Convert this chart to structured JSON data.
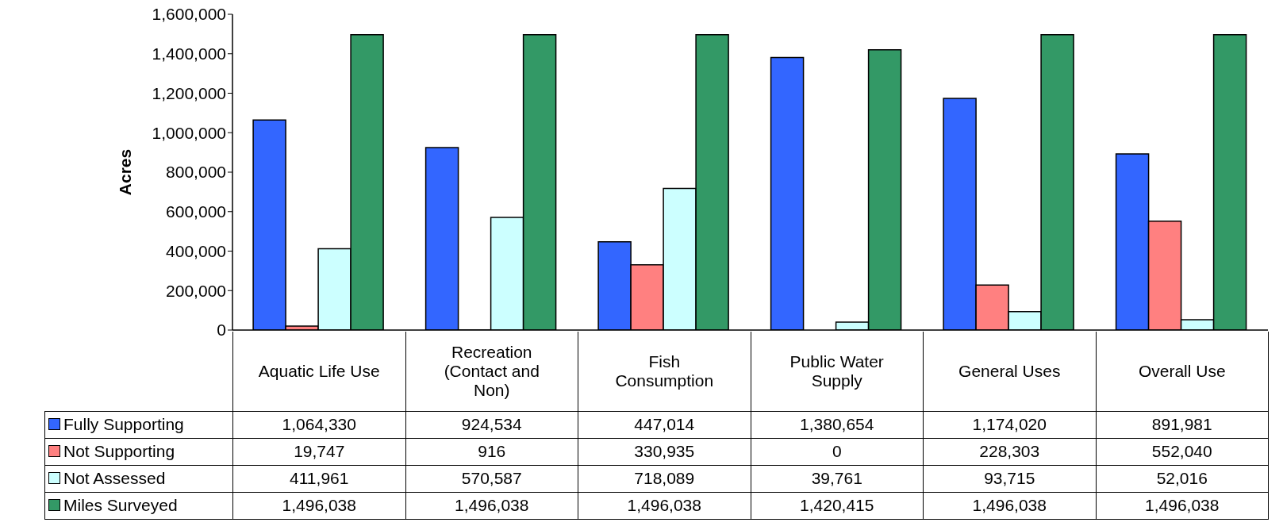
{
  "chart_data": {
    "type": "bar",
    "ylabel": "Acres",
    "categories": [
      "Aquatic Life Use",
      "Recreation (Contact and Non)",
      "Fish Consumption",
      "Public Water Supply",
      "General Uses",
      "Overall Use"
    ],
    "series": [
      {
        "name": "Fully Supporting",
        "color": "#3366ff",
        "values": [
          1064330,
          924534,
          447014,
          1380654,
          1174020,
          891981
        ],
        "value_labels": [
          "1,064,330",
          "924,534",
          "447,014",
          "1,380,654",
          "1,174,020",
          "891,981"
        ]
      },
      {
        "name": "Not Supporting",
        "color": "#ff8080",
        "values": [
          19747,
          916,
          330935,
          0,
          228303,
          552040
        ],
        "value_labels": [
          "19,747",
          "916",
          "330,935",
          "0",
          "228,303",
          "552,040"
        ]
      },
      {
        "name": "Not Assessed",
        "color": "#ccffff",
        "values": [
          411961,
          570587,
          718089,
          39761,
          93715,
          52016
        ],
        "value_labels": [
          "411,961",
          "570,587",
          "718,089",
          "39,761",
          "93,715",
          "52,016"
        ]
      },
      {
        "name": "Miles Surveyed",
        "color": "#339966",
        "values": [
          1496038,
          1496038,
          1496038,
          1420415,
          1496038,
          1496038
        ],
        "value_labels": [
          "1,496,038",
          "1,496,038",
          "1,496,038",
          "1,420,415",
          "1,496,038",
          "1,496,038"
        ]
      }
    ],
    "ylim": [
      0,
      1600000
    ],
    "yticks": [
      0,
      {
        "value": 200000,
        "label": "200,000"
      },
      {
        "value": 400000,
        "label": "400,000"
      },
      {
        "value": 600000,
        "label": "600,000"
      },
      {
        "value": 800000,
        "label": "800,000"
      },
      {
        "value": 1000000,
        "label": "1,000,000"
      },
      {
        "value": 1200000,
        "label": "1,200,000"
      },
      {
        "value": 1400000,
        "label": "1,400,000"
      },
      {
        "value": 1600000,
        "label": "1,600,000"
      }
    ],
    "legend": "bottom"
  }
}
